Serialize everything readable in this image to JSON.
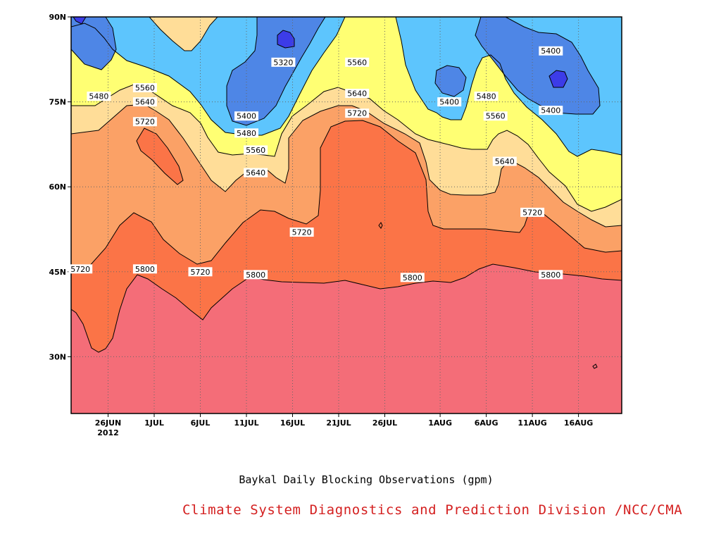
{
  "caption": "Baykal Daily Blocking Observations (gpm)",
  "credit": "Climate System Diagnostics and Prediction Division /NCC/CMA",
  "chart_data": {
    "type": "contour",
    "units": "gpm",
    "x_tick_labels": [
      "26JUN",
      "1JUL",
      "6JUL",
      "11JUL",
      "16JUL",
      "21JUL",
      "26JUL",
      "1AUG",
      "6AUG",
      "11AUG",
      "16AUG"
    ],
    "x_year_label": "2012",
    "y_tick_labels": [
      "90N",
      "75N",
      "60N",
      "45N",
      "30N"
    ],
    "ylim": [
      "20N",
      "90N"
    ],
    "xlim": [
      "22JUN2012",
      "22AUG2012"
    ],
    "grid": true,
    "levels": [
      5320,
      5400,
      5480,
      5560,
      5640,
      5720,
      5800
    ],
    "colors": {
      "5800+": "#f46d78",
      "5720-5800": "#fb7447",
      "5640-5720": "#fba166",
      "5560-5640": "#ffdd98",
      "5480-5560": "#ffff73",
      "5400-5480": "#5dc5fd",
      "5320-5400": "#4e86e6",
      "<5320": "#3c3ce8"
    },
    "contour_line_color": "#000000",
    "contour_labels": [
      {
        "value": "5320",
        "date": "15JUL",
        "lat": 82
      },
      {
        "value": "5560",
        "date": "23JUL",
        "lat": 82
      },
      {
        "value": "5400",
        "date": "13AUG",
        "lat": 84
      },
      {
        "value": "5560",
        "date": "30JUN",
        "lat": 77.5
      },
      {
        "value": "5480",
        "date": "25JUN",
        "lat": 76
      },
      {
        "value": "5640",
        "date": "30JUN",
        "lat": 75
      },
      {
        "value": "5720",
        "date": "30JUN",
        "lat": 71.5
      },
      {
        "value": "5400",
        "date": "11JUL",
        "lat": 72.5
      },
      {
        "value": "5480",
        "date": "11JUL",
        "lat": 69.5
      },
      {
        "value": "5560",
        "date": "12JUL",
        "lat": 66.5
      },
      {
        "value": "5640",
        "date": "12JUL",
        "lat": 62.5
      },
      {
        "value": "5640",
        "date": "23JUL",
        "lat": 76.5
      },
      {
        "value": "5720",
        "date": "23JUL",
        "lat": 73
      },
      {
        "value": "5400",
        "date": "2AUG",
        "lat": 75
      },
      {
        "value": "5480",
        "date": "6AUG",
        "lat": 76
      },
      {
        "value": "5560",
        "date": "7AUG",
        "lat": 72.5
      },
      {
        "value": "5400",
        "date": "13AUG",
        "lat": 73.5
      },
      {
        "value": "5640",
        "date": "8AUG",
        "lat": 64.5
      },
      {
        "value": "5720",
        "date": "11AUG",
        "lat": 55.5
      },
      {
        "value": "5720",
        "date": "17JUL",
        "lat": 52
      },
      {
        "value": "5720",
        "date": "23JUN",
        "lat": 45.5
      },
      {
        "value": "5800",
        "date": "30JUN",
        "lat": 45.5
      },
      {
        "value": "5720",
        "date": "6JUL",
        "lat": 45
      },
      {
        "value": "5800",
        "date": "12JUL",
        "lat": 44.5
      },
      {
        "value": "5800",
        "date": "29JUL",
        "lat": 44
      },
      {
        "value": "5800",
        "date": "13AUG",
        "lat": 44.5
      }
    ]
  }
}
